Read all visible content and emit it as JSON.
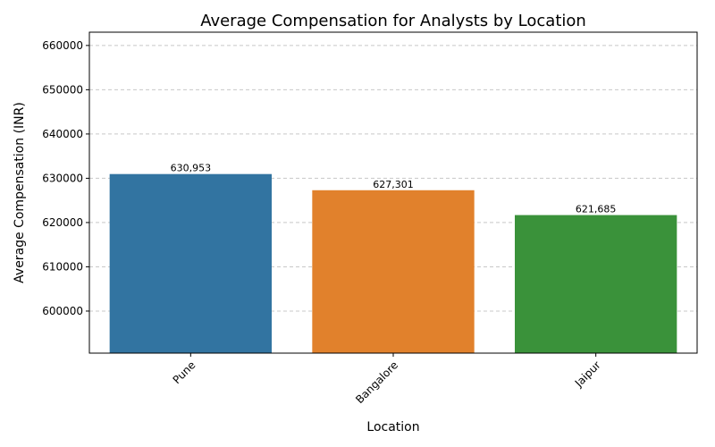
{
  "chart_data": {
    "type": "bar",
    "title": "Average Compensation for Analysts by Location",
    "xlabel": "Location",
    "ylabel": "Average Compensation (INR)",
    "categories": [
      "Pune",
      "Bangalore",
      "Jaipur"
    ],
    "values": [
      630953,
      627301,
      621685
    ],
    "value_labels": [
      "630,953",
      "627,301",
      "621,685"
    ],
    "colors": [
      "#3274a1",
      "#e1812c",
      "#3a923a"
    ],
    "ylim": [
      590500,
      663000
    ],
    "yticks": [
      600000,
      610000,
      620000,
      630000,
      640000,
      650000,
      660000
    ],
    "ytick_labels": [
      "600000",
      "610000",
      "620000",
      "630000",
      "640000",
      "650000",
      "660000"
    ],
    "grid": "y-dashed",
    "xtick_rotation": 45
  }
}
